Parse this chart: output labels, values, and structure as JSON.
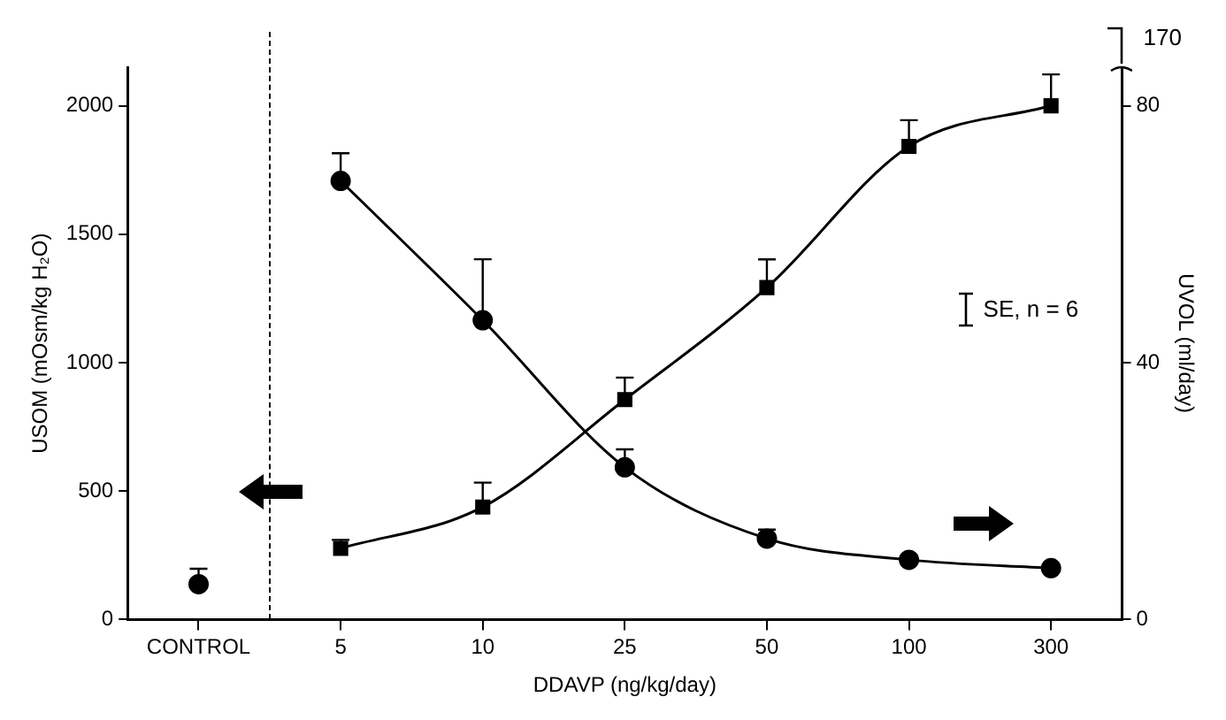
{
  "chart_data": {
    "type": "line",
    "xlabel": "DDAVP (ng/kg/day)",
    "ylabel": "USOM (mOsm/kg H₂O)",
    "y2label": "UVOL (ml/day)",
    "categories": [
      "CONTROL",
      "5",
      "10",
      "25",
      "50",
      "100",
      "300"
    ],
    "ylim": [
      0,
      2150
    ],
    "yticks": [
      0,
      500,
      1000,
      1500,
      2000
    ],
    "y2lim": [
      0,
      86
    ],
    "y2ticks": [
      0,
      40,
      80
    ],
    "grid": false,
    "legend": false,
    "line_style": "solid",
    "annotations": [
      "SE, n = 6",
      "170"
    ],
    "series": [
      {
        "type": "line",
        "axis": "y",
        "marker": "square",
        "color": "#000000",
        "values": [
          null,
          277,
          438,
          856,
          1292,
          1842,
          2000
        ],
        "errors": [
          null,
          [
            277,
            310
          ],
          [
            438,
            533
          ],
          [
            856,
            942
          ],
          [
            1292,
            1402
          ],
          [
            1842,
            1944
          ],
          [
            2000,
            2122
          ]
        ]
      },
      {
        "type": "line",
        "axis": "y2",
        "marker": "circle",
        "color": "#000000",
        "values": [
          null,
          68.3,
          46.6,
          23.7,
          12.6,
          9.3,
          8.0
        ],
        "errors": [
          null,
          [
            68.3,
            72.6
          ],
          [
            46.6,
            56.1
          ],
          [
            23.7,
            26.5
          ],
          [
            12.6,
            14
          ],
          [
            9.3,
            9.9
          ],
          [
            8.0,
            8.5
          ]
        ]
      },
      {
        "type": "scatter",
        "axis": "y2",
        "marker": "circle",
        "color": "#000000",
        "values": [
          5.5,
          null,
          null,
          null,
          null,
          null,
          null
        ],
        "errors": [
          [
            5.5,
            7.9
          ],
          null,
          null,
          null,
          null,
          null,
          null
        ]
      }
    ]
  }
}
